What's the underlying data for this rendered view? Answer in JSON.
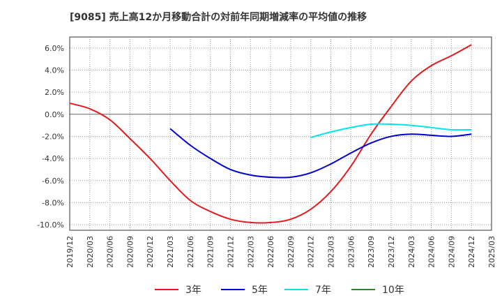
{
  "title": "[9085]  売上高12か月移動合計の対前年同期増減率の平均値の推移",
  "chart_data": {
    "type": "line",
    "title": "[9085]  売上高12か月移動合計の対前年同期増減率の平均値の推移",
    "xlabel": "",
    "ylabel": "",
    "ylim": [
      -10.5,
      7.0
    ],
    "y_ticks": [
      "6.0%",
      "4.0%",
      "2.0%",
      "0.0%",
      "-2.0%",
      "-4.0%",
      "-6.0%",
      "-8.0%",
      "-10.0%"
    ],
    "y_tick_values": [
      6,
      4,
      2,
      0,
      -2,
      -4,
      -6,
      -8,
      -10
    ],
    "x_ticks": [
      "2019/12",
      "2020/03",
      "2020/06",
      "2020/09",
      "2020/12",
      "2021/03",
      "2021/06",
      "2021/09",
      "2021/12",
      "2022/03",
      "2022/06",
      "2022/09",
      "2022/12",
      "2023/03",
      "2023/06",
      "2023/09",
      "2023/12",
      "2024/03",
      "2024/06",
      "2024/09",
      "2024/12",
      "2025/03"
    ],
    "grid": true,
    "legend_position": "bottom",
    "series": [
      {
        "name": "3年",
        "color": "#e31a1c",
        "x": [
          "2019/12",
          "2020/03",
          "2020/06",
          "2020/09",
          "2020/12",
          "2021/03",
          "2021/06",
          "2021/09",
          "2021/12",
          "2022/03",
          "2022/06",
          "2022/09",
          "2022/12",
          "2023/03",
          "2023/06",
          "2023/09",
          "2023/12",
          "2024/03",
          "2024/06",
          "2024/09",
          "2024/12"
        ],
        "values": [
          1.0,
          0.5,
          -0.5,
          -2.2,
          -4.0,
          -6.0,
          -7.8,
          -8.8,
          -9.5,
          -9.8,
          -9.8,
          -9.5,
          -8.6,
          -7.0,
          -4.7,
          -1.8,
          0.7,
          3.0,
          4.4,
          5.3,
          6.3
        ]
      },
      {
        "name": "5年",
        "color": "#0000cc",
        "x": [
          "2021/03",
          "2021/06",
          "2021/09",
          "2021/12",
          "2022/03",
          "2022/06",
          "2022/09",
          "2022/12",
          "2023/03",
          "2023/06",
          "2023/09",
          "2023/12",
          "2024/03",
          "2024/06",
          "2024/09",
          "2024/12"
        ],
        "values": [
          -1.3,
          -2.8,
          -4.0,
          -5.0,
          -5.5,
          -5.7,
          -5.7,
          -5.3,
          -4.5,
          -3.5,
          -2.6,
          -2.0,
          -1.8,
          -1.9,
          -2.0,
          -1.8
        ]
      },
      {
        "name": "7年",
        "color": "#00e5ee",
        "x": [
          "2022/12",
          "2023/03",
          "2023/06",
          "2023/09",
          "2023/12",
          "2024/03",
          "2024/06",
          "2024/09",
          "2024/12"
        ],
        "values": [
          -2.1,
          -1.6,
          -1.2,
          -0.9,
          -0.9,
          -1.0,
          -1.2,
          -1.4,
          -1.4
        ]
      },
      {
        "name": "10年",
        "color": "#228b22",
        "x": [],
        "values": []
      }
    ]
  }
}
